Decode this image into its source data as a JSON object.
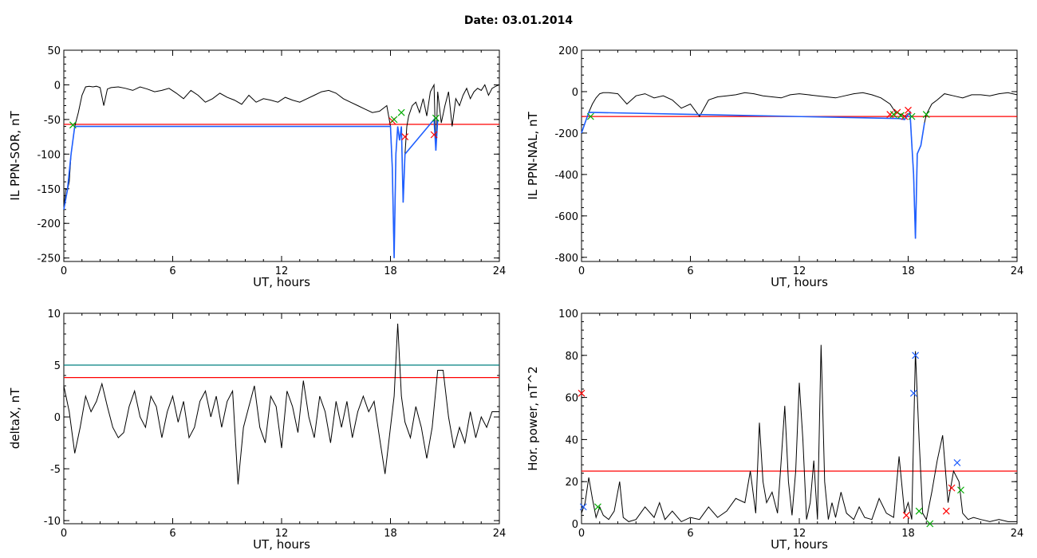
{
  "figure": {
    "title": "Date:  03.01.2014"
  },
  "chart_data": [
    {
      "type": "line",
      "ylabel": "IL PPN-SOR, nT",
      "xlabel": "UT, hours",
      "xlim": [
        0,
        24
      ],
      "ylim": [
        -255,
        50
      ],
      "x_ticks": [
        0,
        6,
        12,
        18,
        24
      ],
      "y_ticks": [
        -250,
        -200,
        -150,
        -100,
        -50,
        0,
        50
      ],
      "series": [
        {
          "color": "#000000",
          "x": [
            0,
            0.1,
            0.2,
            0.3,
            0.4,
            0.5,
            0.6,
            0.8,
            1.0,
            1.2,
            1.4,
            1.6,
            1.8,
            2.0,
            2.2,
            2.4,
            2.6,
            3.0,
            3.4,
            3.8,
            4.2,
            4.6,
            5.0,
            5.4,
            5.8,
            6.2,
            6.6,
            7.0,
            7.4,
            7.8,
            8.2,
            8.6,
            9.0,
            9.4,
            9.8,
            10.2,
            10.6,
            11.0,
            11.4,
            11.8,
            12.2,
            12.6,
            13.0,
            13.4,
            13.8,
            14.2,
            14.6,
            15.0,
            15.4,
            15.8,
            16.2,
            16.6,
            17.0,
            17.4,
            17.8,
            18.0,
            18.1,
            18.2,
            18.3,
            18.4,
            18.5,
            18.6,
            18.7,
            18.8,
            18.9,
            19.0,
            19.2,
            19.4,
            19.6,
            19.8,
            20.0,
            20.2,
            20.4,
            20.5,
            20.6,
            20.8,
            21.0,
            21.2,
            21.4,
            21.6,
            21.8,
            22.0,
            22.2,
            22.4,
            22.6,
            22.8,
            23.0,
            23.2,
            23.4,
            23.6,
            23.8,
            24.0
          ],
          "y": [
            -180,
            -150,
            -152,
            -140,
            -100,
            -80,
            -60,
            -40,
            -15,
            -3,
            -2,
            -3,
            -2,
            -4,
            -30,
            -6,
            -4,
            -3,
            -5,
            -8,
            -3,
            -6,
            -10,
            -8,
            -5,
            -12,
            -20,
            -8,
            -15,
            -25,
            -20,
            -12,
            -18,
            -22,
            -28,
            -15,
            -25,
            -20,
            -22,
            -25,
            -18,
            -22,
            -25,
            -20,
            -15,
            -10,
            -8,
            -12,
            -20,
            -25,
            -30,
            -35,
            -40,
            -38,
            -30,
            -60,
            -120,
            -250,
            -100,
            -60,
            -80,
            -60,
            -170,
            -100,
            -60,
            -45,
            -30,
            -25,
            -40,
            -20,
            -45,
            -10,
            0,
            -95,
            -10,
            -55,
            -30,
            -10,
            -60,
            -20,
            -30,
            -15,
            -5,
            -20,
            -10,
            -5,
            -8,
            0,
            -15,
            -5,
            -2,
            0
          ]
        },
        {
          "color": "#1f5fff",
          "x": [
            0,
            0.2,
            0.4,
            0.6,
            18.0,
            18.1,
            18.2,
            18.3,
            18.4,
            18.5,
            18.6,
            18.7,
            18.8,
            20.4,
            20.5,
            20.6
          ],
          "y": [
            -180,
            -152,
            -100,
            -60,
            -60,
            -120,
            -250,
            -100,
            -60,
            -80,
            -60,
            -170,
            -100,
            -50,
            -95,
            -50
          ]
        },
        {
          "color": "#ff0000",
          "x": [
            18.1,
            18.8,
            20.4
          ],
          "y": [
            -52,
            -75,
            -72
          ]
        },
        {
          "color": "#00aa00",
          "x": [
            0.5,
            18.2,
            18.6,
            20.5
          ],
          "y": [
            -58,
            -50,
            -40,
            -48
          ]
        }
      ],
      "threshold_lines": [
        {
          "y": -57,
          "color": "#ff0000"
        }
      ]
    },
    {
      "type": "line",
      "ylabel": "IL PPN-NAL, nT",
      "xlabel": "UT, hours",
      "xlim": [
        0,
        24
      ],
      "ylim": [
        -820,
        200
      ],
      "x_ticks": [
        0,
        6,
        12,
        18,
        24
      ],
      "y_ticks": [
        -800,
        -600,
        -400,
        -200,
        0,
        200
      ],
      "series": [
        {
          "color": "#000000",
          "x": [
            0,
            0.2,
            0.4,
            0.6,
            0.8,
            1.0,
            1.2,
            1.5,
            2.0,
            2.5,
            3.0,
            3.5,
            4.0,
            4.5,
            5.0,
            5.5,
            6.0,
            6.5,
            7.0,
            7.5,
            8.0,
            8.5,
            9.0,
            9.5,
            10.0,
            10.5,
            11.0,
            11.5,
            12.0,
            12.5,
            13.0,
            13.5,
            14.0,
            14.5,
            15.0,
            15.5,
            16.0,
            16.5,
            17.0,
            17.3,
            17.6,
            17.9,
            18.1,
            18.2,
            18.3,
            18.4,
            18.5,
            18.7,
            18.9,
            19.0,
            19.3,
            19.6,
            20.0,
            20.5,
            21.0,
            21.5,
            22.0,
            22.5,
            23.0,
            23.5,
            24.0
          ],
          "y": [
            -200,
            -150,
            -100,
            -60,
            -30,
            -10,
            -5,
            -5,
            -10,
            -60,
            -20,
            -10,
            -30,
            -20,
            -40,
            -80,
            -60,
            -120,
            -40,
            -25,
            -20,
            -15,
            -5,
            -10,
            -20,
            -25,
            -30,
            -15,
            -10,
            -15,
            -20,
            -25,
            -30,
            -20,
            -10,
            -5,
            -15,
            -30,
            -60,
            -100,
            -110,
            -120,
            -100,
            -250,
            -400,
            -710,
            -300,
            -260,
            -150,
            -110,
            -60,
            -40,
            -10,
            -20,
            -30,
            -15,
            -15,
            -20,
            -10,
            -5,
            -15
          ]
        },
        {
          "color": "#1f5fff",
          "x": [
            0,
            0.2,
            0.4,
            17.5,
            17.8,
            18.1,
            18.2,
            18.3,
            18.4,
            18.5,
            18.7,
            18.9
          ],
          "y": [
            -200,
            -150,
            -100,
            -130,
            -135,
            -100,
            -250,
            -400,
            -710,
            -300,
            -260,
            -150
          ]
        },
        {
          "color": "#ff0000",
          "x": [
            17.0,
            17.4,
            17.8,
            18.0
          ],
          "y": [
            -110,
            -100,
            -120,
            -90
          ]
        },
        {
          "color": "#00aa00",
          "x": [
            0.5,
            17.2,
            17.6,
            18.2,
            19.0
          ],
          "y": [
            -120,
            -110,
            -115,
            -120,
            -110
          ]
        }
      ],
      "threshold_lines": [
        {
          "y": -120,
          "color": "#ff0000"
        }
      ]
    },
    {
      "type": "line",
      "ylabel": "deltaX, nT",
      "xlabel": "UT, hours",
      "xlim": [
        0,
        24
      ],
      "ylim": [
        -10.3,
        10
      ],
      "x_ticks": [
        0,
        6,
        12,
        18,
        24
      ],
      "y_ticks": [
        -10,
        -5,
        0,
        5,
        10
      ],
      "series": [
        {
          "color": "#000000",
          "x": [
            0,
            0.3,
            0.6,
            0.9,
            1.2,
            1.5,
            1.8,
            2.1,
            2.4,
            2.7,
            3.0,
            3.3,
            3.6,
            3.9,
            4.2,
            4.5,
            4.8,
            5.1,
            5.4,
            5.7,
            6.0,
            6.3,
            6.6,
            6.9,
            7.2,
            7.5,
            7.8,
            8.1,
            8.4,
            8.7,
            9.0,
            9.3,
            9.6,
            9.9,
            10.2,
            10.5,
            10.8,
            11.1,
            11.4,
            11.7,
            12.0,
            12.3,
            12.6,
            12.9,
            13.2,
            13.5,
            13.8,
            14.1,
            14.4,
            14.7,
            15.0,
            15.3,
            15.6,
            15.9,
            16.2,
            16.5,
            16.8,
            17.1,
            17.4,
            17.7,
            18.0,
            18.2,
            18.4,
            18.6,
            18.8,
            19.1,
            19.4,
            19.7,
            20.0,
            20.3,
            20.6,
            20.9,
            21.2,
            21.5,
            21.8,
            22.1,
            22.4,
            22.7,
            23.0,
            23.3,
            23.6,
            24.0
          ],
          "y": [
            3,
            0.5,
            -3.5,
            -1,
            2,
            0.5,
            1.5,
            3.2,
            1,
            -1,
            -2,
            -1.5,
            1,
            2.5,
            0,
            -1,
            2,
            1,
            -2,
            0.5,
            2,
            -0.5,
            1.5,
            -2,
            -1,
            1.5,
            2.5,
            0,
            2,
            -1,
            1.5,
            2.5,
            -6.5,
            -1,
            1,
            3,
            -1,
            -2.5,
            2,
            1,
            -3,
            2.5,
            1,
            -1.5,
            3.5,
            0,
            -2,
            2,
            0.5,
            -2.5,
            1.5,
            -1,
            1.5,
            -2,
            0.5,
            2,
            0.5,
            1.5,
            -2,
            -5.5,
            -1,
            2,
            9,
            2,
            -0.5,
            -2,
            1,
            -1,
            -4,
            -1,
            4.5,
            4.5,
            0,
            -3,
            -1,
            -2.5,
            0.5,
            -2,
            0,
            -1,
            0.5,
            0.5
          ]
        }
      ],
      "threshold_lines": [
        {
          "y": 5,
          "color": "#008080"
        },
        {
          "y": 3.8,
          "color": "#ff0000"
        }
      ]
    },
    {
      "type": "line",
      "ylabel": "Hor. power, nT^2",
      "xlabel": "UT, hours",
      "xlim": [
        0,
        24
      ],
      "ylim": [
        0,
        100
      ],
      "x_ticks": [
        0,
        6,
        12,
        18,
        24
      ],
      "y_ticks": [
        0,
        20,
        40,
        60,
        80,
        100
      ],
      "series": [
        {
          "color": "#000000",
          "x": [
            0,
            0.2,
            0.4,
            0.6,
            0.8,
            1.0,
            1.2,
            1.5,
            1.8,
            2.1,
            2.3,
            2.6,
            3.0,
            3.5,
            4.0,
            4.3,
            4.6,
            5.0,
            5.5,
            6.0,
            6.5,
            7.0,
            7.5,
            8.0,
            8.5,
            9.0,
            9.3,
            9.6,
            9.8,
            10.0,
            10.2,
            10.5,
            10.8,
            11.0,
            11.2,
            11.4,
            11.6,
            11.8,
            12.0,
            12.2,
            12.4,
            12.6,
            12.8,
            13.0,
            13.2,
            13.4,
            13.6,
            13.8,
            14.0,
            14.3,
            14.6,
            15.0,
            15.3,
            15.6,
            16.0,
            16.4,
            16.8,
            17.2,
            17.5,
            17.8,
            18.0,
            18.2,
            18.4,
            18.6,
            18.8,
            19.0,
            19.3,
            19.6,
            19.9,
            20.2,
            20.5,
            20.8,
            21.0,
            21.3,
            21.6,
            22.0,
            22.5,
            23.0,
            23.5,
            24.0
          ],
          "y": [
            5,
            10,
            22,
            12,
            3,
            8,
            4,
            2,
            6,
            20,
            3,
            1,
            2,
            8,
            3,
            10,
            2,
            6,
            1,
            3,
            2,
            8,
            3,
            6,
            12,
            10,
            25,
            5,
            48,
            20,
            10,
            15,
            5,
            30,
            56,
            20,
            4,
            25,
            67,
            40,
            2,
            10,
            30,
            2,
            85,
            20,
            2,
            10,
            3,
            15,
            5,
            2,
            8,
            3,
            2,
            12,
            5,
            3,
            32,
            5,
            10,
            2,
            82,
            40,
            5,
            2,
            15,
            30,
            42,
            10,
            25,
            20,
            5,
            2,
            3,
            2,
            1,
            2,
            1,
            1
          ]
        },
        {
          "color": "#1f5fff",
          "x": [
            0.1,
            18.3,
            18.4,
            20.7
          ],
          "y": [
            8,
            62,
            80,
            29
          ]
        },
        {
          "color": "#ff0000",
          "x": [
            0,
            17.9,
            20.1,
            20.4
          ],
          "y": [
            62,
            4,
            6,
            17
          ]
        },
        {
          "color": "#00aa00",
          "x": [
            0.9,
            18.6,
            19.2,
            20.9
          ],
          "y": [
            8,
            6,
            0,
            16
          ]
        }
      ],
      "threshold_lines": [
        {
          "y": 25,
          "color": "#ff0000"
        }
      ]
    }
  ]
}
